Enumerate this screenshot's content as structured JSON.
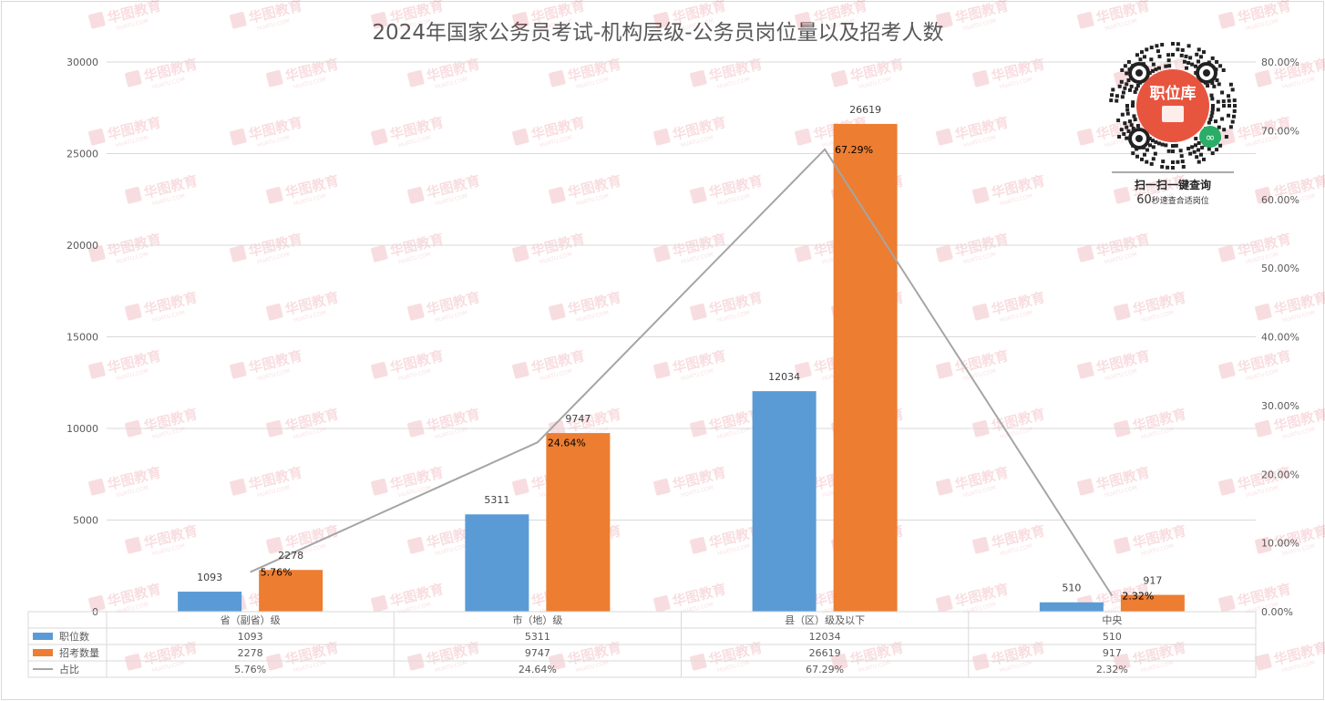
{
  "chart_data": {
    "type": "bar",
    "title": "2024年国家公务员考试-机构层级-公务员岗位量以及招考人数",
    "categories": [
      "省（副省）级",
      "市（地）级",
      "县（区）级及以下",
      "中央"
    ],
    "series": [
      {
        "name": "职位数",
        "type": "bar",
        "axis": "left",
        "color": "#5b9bd5",
        "values": [
          1093,
          5311,
          12034,
          510
        ],
        "labels": [
          "1093",
          "5311",
          "12034",
          "510"
        ]
      },
      {
        "name": "招考数量",
        "type": "bar",
        "axis": "left",
        "color": "#ed7d31",
        "values": [
          2278,
          9747,
          26619,
          917
        ],
        "labels": [
          "2278",
          "9747",
          "26619",
          "917"
        ]
      },
      {
        "name": "占比",
        "type": "line",
        "axis": "right",
        "color": "#a5a5a5",
        "values": [
          5.76,
          24.64,
          67.29,
          2.32
        ],
        "labels": [
          "5.76%",
          "24.64%",
          "67.29%",
          "2.32%"
        ]
      }
    ],
    "y_left": {
      "min": 0,
      "max": 30000,
      "ticks": [
        "0",
        "5000",
        "10000",
        "15000",
        "20000",
        "25000",
        "30000"
      ]
    },
    "y_right": {
      "min": 0,
      "max": 80,
      "ticks": [
        "0.00%",
        "10.00%",
        "20.00%",
        "30.00%",
        "40.00%",
        "50.00%",
        "60.00%",
        "70.00%",
        "80.00%"
      ]
    },
    "grid": true,
    "legend": "data-table-bottom"
  },
  "qr": {
    "badge": "职位库",
    "caption": "扫一扫一键查询",
    "note_num": "60",
    "note_text": "秒速查合适岗位"
  },
  "watermark": {
    "brand": "华图教育",
    "sub": "HUATU.COM"
  },
  "colors": {
    "qr_badge": "#e8553f",
    "wechat": "#2aae67"
  }
}
